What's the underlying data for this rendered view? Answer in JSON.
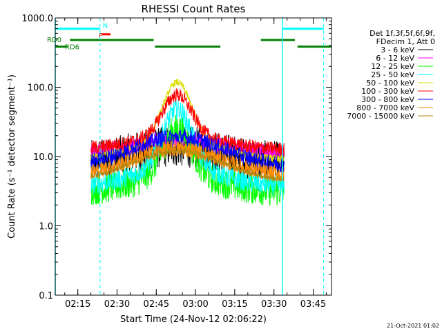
{
  "chart_data": {
    "type": "line",
    "title": "RHESSI Count Rates",
    "xlabel": "Start Time (24-Nov-12 02:06:22)",
    "ylabel": "Count Rate (s⁻¹ detector segment⁻¹)",
    "y_scale": "log",
    "ylim": [
      0.1,
      1000
    ],
    "y_ticks": [
      {
        "value": 0.1,
        "label": "0.1"
      },
      {
        "value": 1,
        "label": "1.0"
      },
      {
        "value": 10,
        "label": "10.0"
      },
      {
        "value": 100,
        "label": "100.0"
      },
      {
        "value": 1000,
        "label": "1000.0"
      }
    ],
    "xlim_min": [
      6.37,
      112
    ],
    "x_ticks": [
      {
        "value": 15,
        "label": "02:15"
      },
      {
        "value": 30,
        "label": "02:30"
      },
      {
        "value": 45,
        "label": "02:45"
      },
      {
        "value": 60,
        "label": "03:00"
      },
      {
        "value": 75,
        "label": "03:15"
      },
      {
        "value": 90,
        "label": "03:30"
      },
      {
        "value": 105,
        "label": "03:45"
      }
    ],
    "x_minor_step": 5,
    "legend_header": [
      "Det 1f,3f,5f,6f,9f,",
      "FDecim 1, Att 0"
    ],
    "legend_placement": "right",
    "series": [
      {
        "name": "3 - 6 keV",
        "color": "#000000",
        "base": 8.0,
        "peak": 14,
        "noise": 0.3,
        "data_start": 20,
        "data_end": 94
      },
      {
        "name": "6 - 12 keV",
        "color": "#ff00ff",
        "base": 11.0,
        "peak": 18,
        "noise": 0.12,
        "data_start": 20,
        "data_end": 94
      },
      {
        "name": "12 - 25 keV",
        "color": "#00ff00",
        "base": 3.0,
        "peak": 25,
        "noise": 0.22,
        "data_start": 20,
        "data_end": 94
      },
      {
        "name": "25 - 50 keV",
        "color": "#00ffff",
        "base": 3.6,
        "peak": 48,
        "noise": 0.15,
        "data_start": 20,
        "data_end": 94
      },
      {
        "name": "50 - 100 keV",
        "color": "#dddd00",
        "base": 9.0,
        "peak": 118,
        "noise": 0.05,
        "data_start": 20,
        "data_end": 94
      },
      {
        "name": "100 - 300 keV",
        "color": "#ff0000",
        "base": 12.5,
        "peak": 78,
        "noise": 0.1,
        "data_start": 20,
        "data_end": 94
      },
      {
        "name": "300 - 800 keV",
        "color": "#0000ff",
        "base": 7.3,
        "peak": 19,
        "noise": 0.12,
        "data_start": 20,
        "data_end": 94
      },
      {
        "name": "800 - 7000 keV",
        "color": "#ff8c00",
        "base": 5.2,
        "peak": 13,
        "noise": 0.12,
        "data_start": 20,
        "data_end": 94
      },
      {
        "name": "7000 - 15000 keV",
        "color": "#b8860b",
        "base": 4.5,
        "peak": 12,
        "noise": 0.04,
        "data_start": 20,
        "data_end": 94
      }
    ],
    "flags": [
      {
        "label": "N",
        "color": "#00ffff",
        "y": 700,
        "segments": [
          [
            6.37,
            23.5
          ],
          [
            93.3,
            109
          ]
        ]
      },
      {
        "label": "F",
        "color": "#ff0000",
        "y": 580,
        "segments": [
          [
            24.2,
            27.5
          ]
        ]
      },
      {
        "label": "RD0",
        "color": "#008000",
        "y": 480,
        "segments": [
          [
            12,
            44
          ],
          [
            85,
            98
          ]
        ]
      },
      {
        "label": "RD6",
        "color": "#008000",
        "y": 385,
        "segments": [
          [
            6.37,
            11
          ],
          [
            44.5,
            69.5
          ],
          [
            99,
            112
          ]
        ]
      }
    ],
    "vlines_solid": [
      {
        "x": 6.37,
        "color": "#00ffff"
      },
      {
        "x": 93.3,
        "color": "#00ffff"
      }
    ],
    "vlines_dashed": [
      {
        "x": 23.5,
        "color": "#00ffff"
      },
      {
        "x": 109,
        "color": "#00ffff"
      }
    ]
  },
  "footer_date": "21-Oct-2021 01:02"
}
